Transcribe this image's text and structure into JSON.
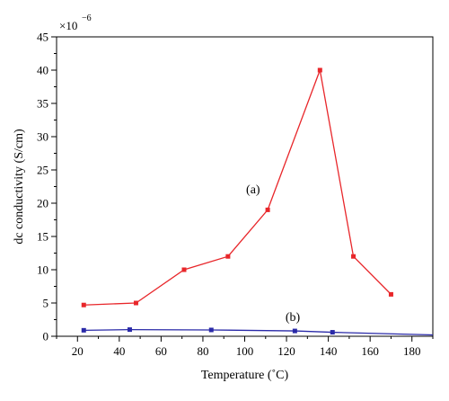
{
  "chart_data": {
    "type": "line",
    "xlabel": "Temperature (˚C)",
    "ylabel": "dc conductivity (S/cm)",
    "y_multiplier": {
      "base": "×10",
      "exponent": "−6"
    },
    "xlim": [
      10,
      190
    ],
    "ylim": [
      0,
      45
    ],
    "xticks": [
      20,
      40,
      60,
      80,
      100,
      120,
      140,
      160,
      180
    ],
    "yticks": [
      0,
      5,
      10,
      15,
      20,
      25,
      30,
      35,
      40,
      45
    ],
    "grid": false,
    "series": [
      {
        "label": "(a)",
        "color": "#e8262a",
        "x": [
          23,
          48,
          71,
          92,
          111,
          136,
          152,
          170
        ],
        "y": [
          4.7,
          5.0,
          10.0,
          12.0,
          19.0,
          40.0,
          12.0,
          6.3
        ]
      },
      {
        "label": "(b)",
        "color": "#2a2aa8",
        "x": [
          23,
          45,
          84,
          124,
          142,
          190
        ],
        "y": [
          0.9,
          1.0,
          0.95,
          0.8,
          0.6,
          0.2
        ],
        "markers": [
          true,
          true,
          true,
          true,
          true,
          false
        ]
      }
    ],
    "annotations": [
      {
        "text": "(a)",
        "x": 104,
        "y": 21.5
      },
      {
        "text": "(b)",
        "x": 123,
        "y": 2.3
      }
    ]
  }
}
